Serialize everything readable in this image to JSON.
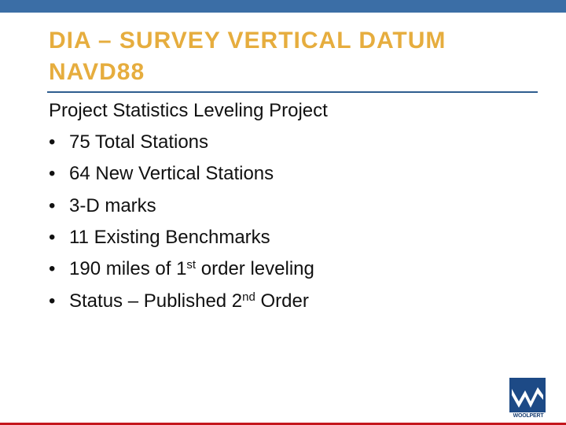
{
  "header": {
    "title_lines": [
      "DIA – SURVEY VERTICAL DATUM",
      "NAVD88"
    ]
  },
  "body": {
    "intro": "Project Statistics Leveling Project",
    "bullets": [
      {
        "text": "75 Total Stations"
      },
      {
        "text": "64 New Vertical Stations"
      },
      {
        "text": "3-D marks"
      },
      {
        "text": "11 Existing Benchmarks"
      },
      {
        "text": "190 miles of 1",
        "sup": "st",
        "after": " order leveling"
      },
      {
        "text": "Status – Published 2",
        "sup": "nd",
        "after": " Order"
      }
    ]
  },
  "logo": {
    "text": "WOOLPERT"
  }
}
